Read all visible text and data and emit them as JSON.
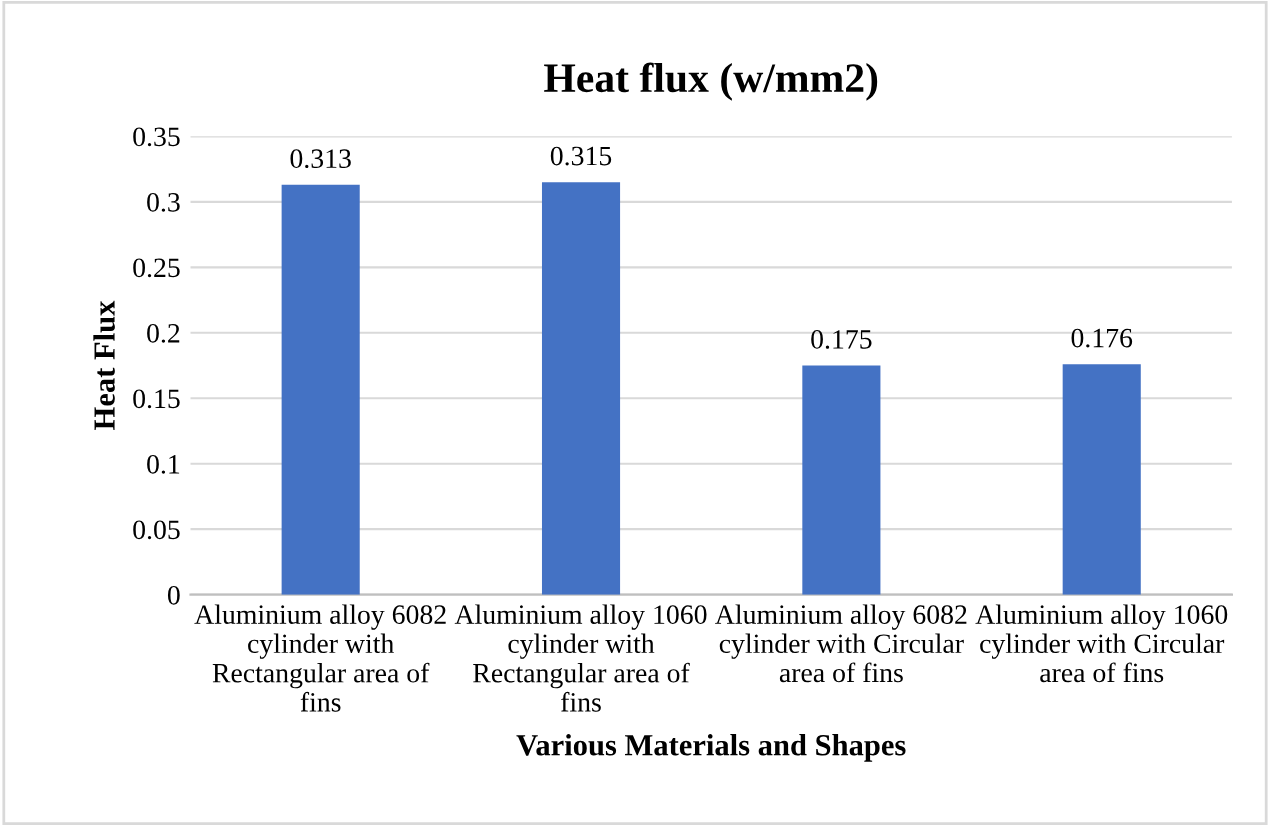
{
  "chart_data": {
    "type": "bar",
    "title": "Heat flux (w/mm2)",
    "xlabel": "Various Materials and Shapes",
    "ylabel": "Heat Flux",
    "categories": [
      "Aluminium alloy 6082 cylinder with Rectangular area of fins",
      "Aluminium alloy 1060 cylinder with Rectangular area of fins",
      "Aluminium alloy 6082 cylinder with Circular area of fins",
      "Aluminium alloy 1060 cylinder with Circular area of fins"
    ],
    "values": [
      0.313,
      0.315,
      0.175,
      0.176
    ],
    "color": "#4472c4",
    "data_labels": true,
    "ylim": [
      0,
      0.35
    ],
    "yticks": [
      0,
      0.05,
      0.1,
      0.15,
      0.2,
      0.25,
      0.3,
      0.35
    ],
    "grid": "y",
    "legend": false
  }
}
